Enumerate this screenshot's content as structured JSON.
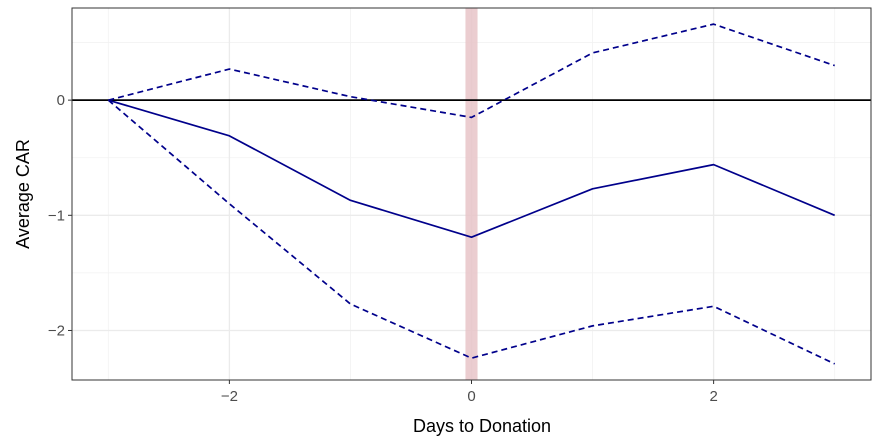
{
  "chart_data": {
    "type": "line",
    "title": "",
    "xlabel": "Days to Donation",
    "ylabel": "Average CAR",
    "x": [
      -3,
      -2,
      -1,
      0,
      1,
      2,
      3
    ],
    "xlim": [
      -3.3,
      3.3
    ],
    "ylim": [
      -2.43,
      0.8
    ],
    "x_ticks": [
      -2,
      0,
      2
    ],
    "x_tick_labels": [
      "−2",
      "0",
      "2"
    ],
    "y_ticks": [
      -2,
      -1,
      0
    ],
    "y_tick_labels": [
      "−2",
      "−1",
      "0"
    ],
    "grid": true,
    "legend": "none",
    "series": [
      {
        "values": [
          0,
          -0.31,
          -0.87,
          -1.19,
          -0.77,
          -0.56,
          -1.0
        ],
        "color": "#00008B",
        "style": "solid"
      },
      {
        "values": [
          0,
          0.27,
          0.03,
          -0.15,
          0.41,
          0.66,
          0.3
        ],
        "color": "#00008B",
        "style": "dashed"
      },
      {
        "values": [
          0,
          -0.9,
          -1.77,
          -2.24,
          -1.96,
          -1.79,
          -2.29
        ],
        "color": "#00008B",
        "style": "dashed"
      }
    ],
    "reference_lines": [
      {
        "axis": "y",
        "value": 0,
        "color": "#000000"
      },
      {
        "axis": "x",
        "value": 0,
        "color": "#E8C4C8",
        "band_halfwidth": 0.05
      }
    ]
  }
}
